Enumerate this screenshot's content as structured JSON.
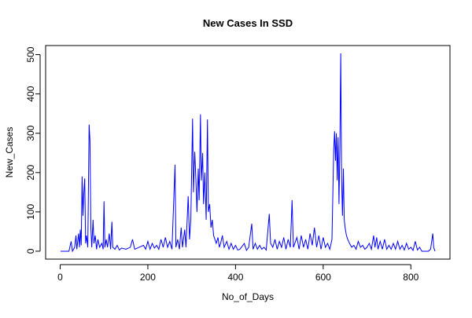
{
  "chart_data": {
    "type": "line",
    "title": "New Cases In SSD",
    "xlabel": "No_of_Days",
    "ylabel": "New_Cases",
    "x": [
      1,
      20,
      25,
      28,
      33,
      36,
      38,
      42,
      44,
      46,
      48,
      50,
      52,
      54,
      56,
      58,
      60,
      63,
      66,
      68,
      70,
      72,
      75,
      77,
      80,
      83,
      86,
      90,
      95,
      98,
      100,
      102,
      105,
      108,
      112,
      115,
      118,
      120,
      125,
      130,
      135,
      140,
      150,
      160,
      165,
      170,
      180,
      190,
      195,
      200,
      205,
      210,
      215,
      220,
      225,
      230,
      235,
      240,
      245,
      250,
      255,
      262,
      264,
      268,
      272,
      276,
      279,
      284,
      287,
      292,
      295,
      298,
      302,
      304,
      307,
      310,
      312,
      315,
      317,
      320,
      322,
      325,
      327,
      330,
      333,
      336,
      338,
      341,
      344,
      347,
      350,
      353,
      356,
      360,
      363,
      366,
      370,
      374,
      380,
      385,
      390,
      395,
      400,
      405,
      410,
      420,
      425,
      430,
      437,
      440,
      445,
      450,
      455,
      460,
      465,
      470,
      477,
      480,
      485,
      490,
      495,
      500,
      505,
      510,
      515,
      520,
      525,
      529,
      532,
      540,
      545,
      550,
      555,
      560,
      565,
      570,
      575,
      580,
      585,
      590,
      595,
      600,
      605,
      610,
      615,
      620,
      624,
      626,
      628,
      630,
      632,
      634,
      636,
      638,
      640,
      642,
      644,
      646,
      648,
      650,
      653,
      656,
      660,
      665,
      670,
      675,
      680,
      685,
      690,
      695,
      700,
      705,
      710,
      715,
      718,
      722,
      725,
      730,
      735,
      740,
      745,
      750,
      755,
      760,
      765,
      770,
      775,
      780,
      785,
      790,
      795,
      800,
      805,
      810,
      815,
      820,
      825,
      840,
      845,
      850,
      852,
      855
    ],
    "series": [
      {
        "name": "New_Cases",
        "color": "#0000ff",
        "values": [
          0,
          0,
          25,
          0,
          10,
          40,
          5,
          45,
          10,
          55,
          15,
          190,
          90,
          150,
          185,
          20,
          40,
          10,
          322,
          280,
          60,
          10,
          80,
          20,
          40,
          5,
          30,
          10,
          20,
          5,
          127,
          10,
          30,
          10,
          45,
          5,
          75,
          10,
          5,
          15,
          3,
          8,
          5,
          10,
          30,
          5,
          10,
          15,
          5,
          25,
          5,
          20,
          8,
          15,
          5,
          30,
          10,
          35,
          10,
          25,
          5,
          220,
          10,
          30,
          5,
          60,
          10,
          55,
          10,
          140,
          30,
          80,
          337,
          150,
          253,
          170,
          100,
          210,
          130,
          348,
          180,
          250,
          120,
          200,
          80,
          335,
          100,
          120,
          60,
          80,
          40,
          30,
          20,
          35,
          10,
          20,
          40,
          10,
          25,
          5,
          20,
          5,
          15,
          3,
          5,
          20,
          2,
          10,
          70,
          5,
          20,
          5,
          15,
          5,
          10,
          3,
          95,
          20,
          10,
          30,
          5,
          25,
          10,
          35,
          5,
          30,
          10,
          130,
          10,
          35,
          5,
          40,
          10,
          30,
          5,
          45,
          15,
          60,
          10,
          40,
          5,
          35,
          10,
          20,
          5,
          30,
          260,
          305,
          230,
          300,
          180,
          290,
          120,
          260,
          503,
          180,
          90,
          210,
          80,
          60,
          40,
          30,
          20,
          10,
          15,
          5,
          25,
          10,
          15,
          5,
          10,
          20,
          5,
          40,
          10,
          35,
          5,
          25,
          5,
          30,
          5,
          15,
          5,
          20,
          5,
          25,
          5,
          15,
          3,
          20,
          5,
          10,
          2,
          25,
          3,
          10,
          0,
          0,
          5,
          45,
          10,
          0
        ]
      }
    ],
    "xlim": [
      -33.2,
      889.2
    ],
    "ylim": [
      -20.1,
      523.1
    ],
    "xticks": [
      0,
      200,
      400,
      600,
      800
    ],
    "yticks": [
      0,
      100,
      200,
      300,
      400,
      500
    ]
  }
}
